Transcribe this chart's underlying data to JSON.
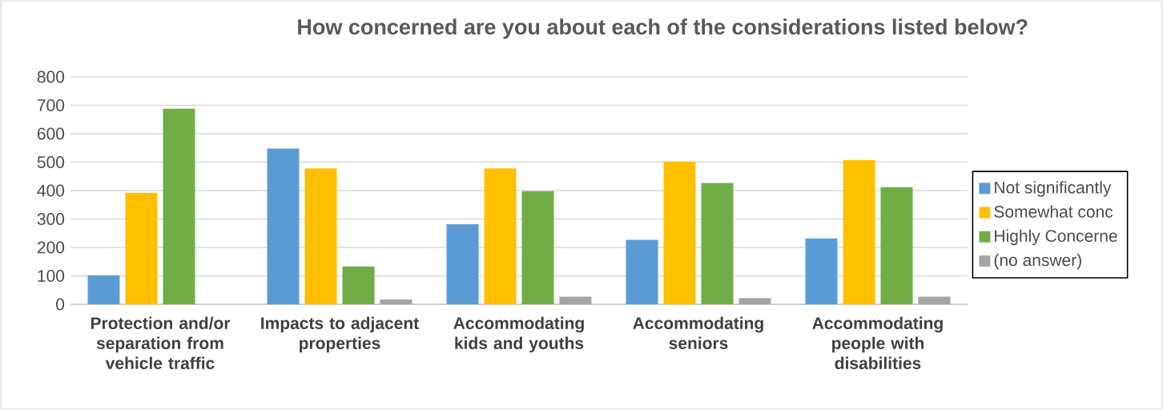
{
  "chart_data": {
    "type": "bar",
    "title": "How concerned are you about each of the considerations  listed below?",
    "categories": [
      "Protection and/or separation from vehicle traffic",
      "Impacts to adjacent properties",
      "Accommodating kids and youths",
      "Accommodating seniors",
      "Accommodating people with disabilities"
    ],
    "series": [
      {
        "name": "Not significantly",
        "color": "#5b9bd5",
        "values": [
          102,
          548,
          282,
          227,
          232
        ]
      },
      {
        "name": "Somewhat conc",
        "color": "#ffc000",
        "values": [
          392,
          478,
          478,
          502,
          507
        ]
      },
      {
        "name": "Highly Concerne",
        "color": "#70ad47",
        "values": [
          688,
          133,
          398,
          427,
          412
        ]
      },
      {
        "name": "(no answer)",
        "color": "#a5a5a5",
        "values": [
          null,
          17,
          27,
          22,
          27
        ]
      }
    ],
    "ylim": [
      0,
      800
    ],
    "yticks": [
      0,
      100,
      200,
      300,
      400,
      500,
      600,
      700,
      800
    ],
    "grid": "y",
    "legend": "right"
  }
}
